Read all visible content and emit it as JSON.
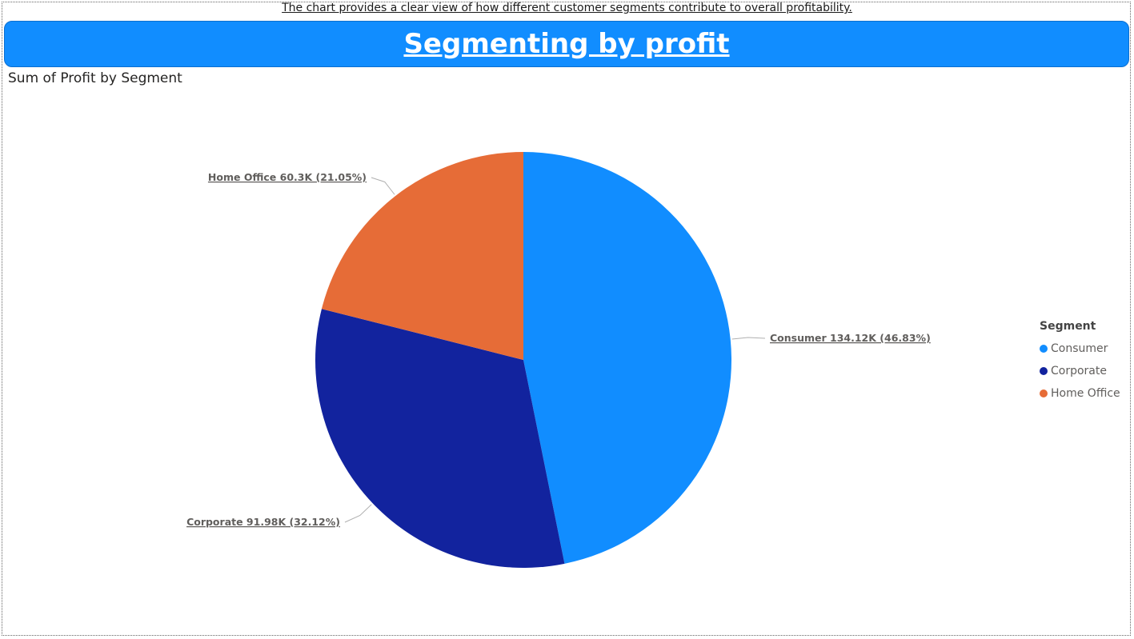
{
  "caption": "The chart provides a clear view of how different customer segments contribute to overall profitability.",
  "banner": {
    "title": "Segmenting by profit"
  },
  "chart_data": {
    "type": "pie",
    "title": "Sum of Profit by Segment",
    "legend_title": "Segment",
    "legend_position": "right",
    "slices": [
      {
        "name": "Consumer",
        "value": 134.12,
        "display": "134.12K",
        "percent": 46.83,
        "percent_label": "46.83%",
        "color": "#118dff"
      },
      {
        "name": "Corporate",
        "value": 91.98,
        "display": "91.98K",
        "percent": 32.12,
        "percent_label": "32.12%",
        "color": "#12239e"
      },
      {
        "name": "Home Office",
        "value": 60.3,
        "display": "60.3K",
        "percent": 21.05,
        "percent_label": "21.05%",
        "color": "#e66c37"
      }
    ]
  }
}
